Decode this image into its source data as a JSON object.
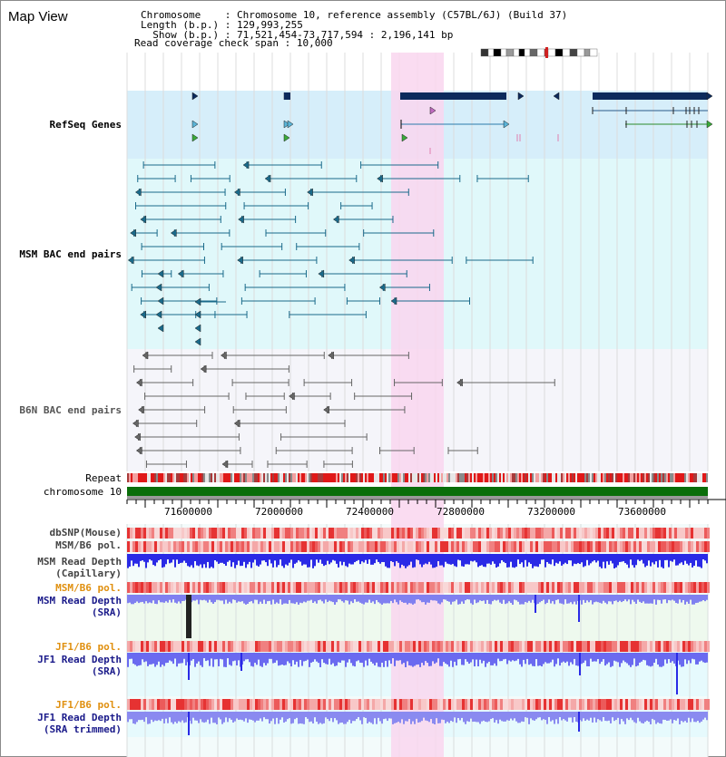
{
  "window": {
    "title": "Map View"
  },
  "info": {
    "chromosome_key": "Chromosome",
    "chromosome_value": "Chromosome 10, reference assembly (C57BL/6J) (Build 37)",
    "length_key": "Length (b.p.)",
    "length_value": "129,993,255",
    "show_key": "Show (b.p.)",
    "show_value": "71,521,454-73,717,594 : 2,196,141 bp",
    "span_key": "Read coverage check span",
    "span_value": "10,000"
  },
  "tracks": {
    "refseq": "RefSeq Genes",
    "msm_bac": "MSM BAC end pairs",
    "b6n_bac": "B6N BAC end pairs",
    "repeat": "Repeat",
    "chromosome": "chromosome 10",
    "dbsnp": "dbSNP(Mouse)",
    "msm_pol_1": "MSM/B6 pol.",
    "msm_depth_cap_1": "MSM Read Depth",
    "msm_depth_cap_2": "(Capillary)",
    "msm_pol_2": "MSM/B6 pol.",
    "msm_depth_sra_1": "MSM Read Depth",
    "msm_depth_sra_2": "(SRA)",
    "jf1_pol_1": "JF1/B6 pol.",
    "jf1_depth_sra_1": "JF1 Read Depth",
    "jf1_depth_sra_2": "(SRA)",
    "jf1_pol_2": "JF1/B6 pol.",
    "jf1_depth_trim_1": "JF1 Read Depth",
    "jf1_depth_trim_2": "(SRA trimmed)"
  },
  "axis": {
    "ticks": [
      "71600000",
      "72000000",
      "72400000",
      "72800000",
      "73200000",
      "73600000"
    ]
  },
  "colors": {
    "refseq_bg": "#d6eefa",
    "msm_bg": "#e0f8fa",
    "b6n_bg": "#f5f5fa",
    "highlight": "#f9d6ef",
    "gene": "#0c2a5c",
    "msm_pair": "#1a6a8a",
    "b6n_pair": "#666666",
    "chrom_green": "#0a6e0a",
    "depth_blue": "#2a2ae6",
    "depth_light": "#8080f0",
    "label_navy": "#1a1a8a",
    "label_teal": "#1a5a8a",
    "label_orange": "#e09010"
  }
}
